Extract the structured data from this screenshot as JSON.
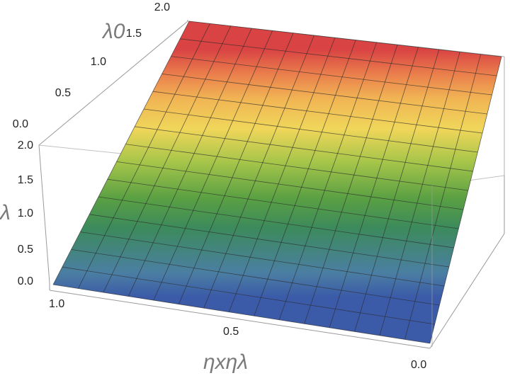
{
  "chart_data": {
    "type": "surface3d",
    "surface": "z = λ0 (plane rising with λ0, constant along ηxηλ)",
    "x_axis": {
      "label": "ηxηλ",
      "range": [
        0.0,
        1.0
      ],
      "ticks": [
        "1.0",
        "0.5",
        "0.0"
      ]
    },
    "y_axis": {
      "label": "λ0",
      "range": [
        0.0,
        2.0
      ],
      "ticks": [
        "0.0",
        "0.5",
        "1.0",
        "1.5",
        "2.0"
      ]
    },
    "z_axis": {
      "label": "λ",
      "range": [
        0.0,
        2.0
      ],
      "ticks": [
        "0.0",
        "0.5",
        "1.0",
        "1.5",
        "2.0"
      ]
    },
    "mesh": {
      "cols": 15,
      "rows": 15
    },
    "colormap": [
      "#3b5aa8",
      "#4b7fa2",
      "#3c8a5c",
      "#5aa043",
      "#a8c64a",
      "#f0d65a",
      "#f1b554",
      "#ea7f4c",
      "#d94343"
    ],
    "values_at_corners": {
      "λ0=0": 0.0,
      "λ0=2": 2.0
    }
  }
}
